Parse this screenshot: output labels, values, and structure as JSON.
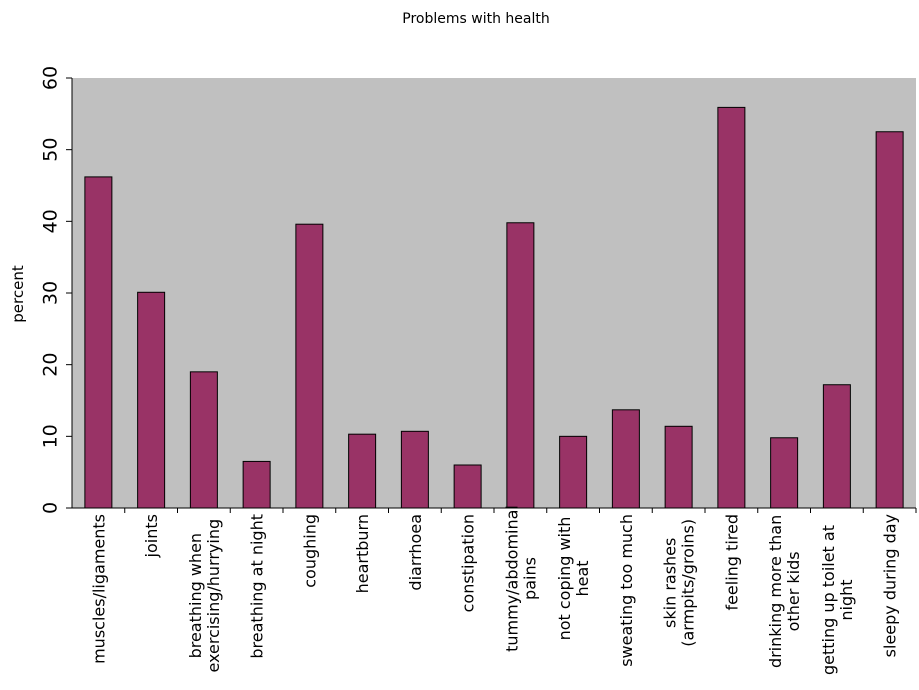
{
  "chart_data": {
    "type": "bar",
    "title": "Problems with health",
    "xlabel": "",
    "ylabel": "percent",
    "ylim": [
      0,
      60
    ],
    "yticks": [
      0,
      10,
      20,
      30,
      40,
      50,
      60
    ],
    "grid": false,
    "legend": "none",
    "categories": [
      [
        "muscles/ligaments"
      ],
      [
        "joints"
      ],
      [
        "breathing when",
        "exercising/hurrying"
      ],
      [
        "breathing at night"
      ],
      [
        "coughing"
      ],
      [
        "heartburn"
      ],
      [
        "diarrhoea"
      ],
      [
        "constipation"
      ],
      [
        "tummy/abdominal",
        "pains"
      ],
      [
        "not coping with",
        "heat"
      ],
      [
        "sweating too much"
      ],
      [
        "skin rashes",
        "(armpits/groins)"
      ],
      [
        "feeling tired"
      ],
      [
        "drinking more than",
        "other kids"
      ],
      [
        "getting up toilet at",
        "night"
      ],
      [
        "sleepy during day"
      ]
    ],
    "values": [
      46.2,
      30.1,
      19.0,
      6.5,
      39.6,
      10.3,
      10.7,
      6.0,
      39.8,
      10.0,
      13.7,
      11.4,
      55.9,
      9.8,
      17.2,
      52.5
    ],
    "colors": {
      "bar": "#993366",
      "bar_edge": "#000000",
      "plot_bg": "#c0c0c0",
      "axis": "#000000"
    }
  }
}
